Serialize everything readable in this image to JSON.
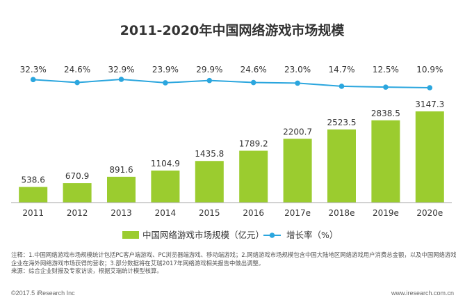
{
  "title": "2011-2020年中国网络游戏市场规模",
  "legend": {
    "bar_label": "中国网络游戏市场规模（亿元）",
    "line_label": "增长率（%）"
  },
  "notes": [
    "注释：1.中国网络游戏市场规模统计包括PC客户端游戏、PC浏览器端游戏、移动端游戏；2.网络游戏市场规模包含中国大陆地区网络游戏用户消费总金额，以及中国网络游戏",
    "企业在海外网络游戏市场获得的营收；3.部分数据将在艾瑞2017年网络游戏相关报告中做出调整。",
    "来源：综合企业财报及专家访谈，根据艾瑞统计模型核算。"
  ],
  "footer": {
    "left": "©2017.5 iResearch Inc",
    "right": "www.iresearch.com.cn"
  },
  "colors": {
    "bar": "#9bcc2f",
    "line": "#2ba6de",
    "axis": "#a6a6a6"
  },
  "chart_data": {
    "type": "bar",
    "title": "2011-2020年中国网络游戏市场规模",
    "categories": [
      "2011",
      "2012",
      "2013",
      "2014",
      "2015",
      "2016",
      "2017e",
      "2018e",
      "2019e",
      "2020e"
    ],
    "series": [
      {
        "name": "中国网络游戏市场规模（亿元）",
        "type": "bar",
        "values": [
          538.6,
          670.9,
          891.6,
          1104.9,
          1435.8,
          1789.2,
          2200.7,
          2523.5,
          2838.5,
          3147.3
        ],
        "labels": [
          "538.6",
          "670.9",
          "891.6",
          "1104.9",
          "1435.8",
          "1789.2",
          "2200.7",
          "2523.5",
          "2838.5",
          "3147.3"
        ]
      },
      {
        "name": "增长率（%）",
        "type": "line",
        "values": [
          32.3,
          24.6,
          32.9,
          23.9,
          29.9,
          24.6,
          23.0,
          14.7,
          12.5,
          10.9
        ],
        "labels": [
          "32.3%",
          "24.6%",
          "32.9%",
          "23.9%",
          "29.9%",
          "24.6%",
          "23.0%",
          "14.7%",
          "12.5%",
          "10.9%"
        ]
      }
    ],
    "legend_position": "bottom",
    "grid": false
  }
}
